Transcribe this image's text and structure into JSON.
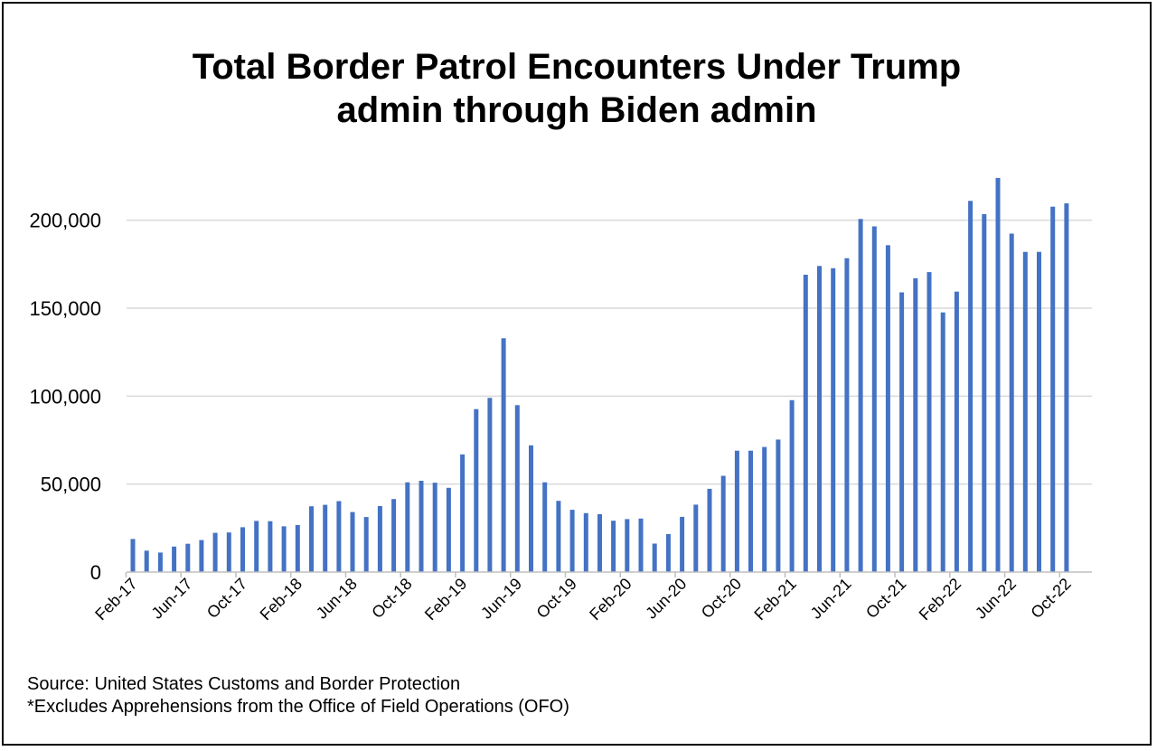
{
  "chart_data": {
    "type": "bar",
    "title_lines": [
      "Total Border Patrol Encounters Under Trump",
      "admin through Biden admin"
    ],
    "xlabel": "",
    "ylabel": "",
    "ylim": [
      0,
      225000
    ],
    "yticks": [
      0,
      50000,
      100000,
      150000,
      200000
    ],
    "ytick_labels": [
      "0",
      "50,000",
      "100,000",
      "150,000",
      "200,000"
    ],
    "grid": true,
    "legend": "none",
    "bar_color": "#4472c4",
    "categories": [
      "Feb-17",
      "Mar-17",
      "Apr-17",
      "May-17",
      "Jun-17",
      "Jul-17",
      "Aug-17",
      "Sep-17",
      "Oct-17",
      "Nov-17",
      "Dec-17",
      "Jan-18",
      "Feb-18",
      "Mar-18",
      "Apr-18",
      "May-18",
      "Jun-18",
      "Jul-18",
      "Aug-18",
      "Sep-18",
      "Oct-18",
      "Nov-18",
      "Dec-18",
      "Jan-19",
      "Feb-19",
      "Mar-19",
      "Apr-19",
      "May-19",
      "Jun-19",
      "Jul-19",
      "Aug-19",
      "Sep-19",
      "Oct-19",
      "Nov-19",
      "Dec-19",
      "Jan-20",
      "Feb-20",
      "Mar-20",
      "Apr-20",
      "May-20",
      "Jun-20",
      "Jul-20",
      "Aug-20",
      "Sep-20",
      "Oct-20",
      "Nov-20",
      "Dec-20",
      "Jan-21",
      "Feb-21",
      "Mar-21",
      "Apr-21",
      "May-21",
      "Jun-21",
      "Jul-21",
      "Aug-21",
      "Sep-21",
      "Oct-21",
      "Nov-21",
      "Dec-21",
      "Jan-22",
      "Feb-22",
      "Mar-22",
      "Apr-22",
      "May-22",
      "Jun-22",
      "Jul-22",
      "Aug-22",
      "Sep-22",
      "Oct-22"
    ],
    "tick_labels": [
      "Feb-17",
      "Jun-17",
      "Oct-17",
      "Feb-18",
      "Jun-18",
      "Oct-18",
      "Feb-19",
      "Jun-19",
      "Oct-19",
      "Feb-20",
      "Jun-20",
      "Oct-20",
      "Feb-21",
      "Jun-21",
      "Oct-21",
      "Feb-22",
      "Jun-22",
      "Oct-22"
    ],
    "values": [
      18800,
      12200,
      11100,
      14500,
      16100,
      18200,
      22300,
      22500,
      25500,
      29100,
      28900,
      26000,
      26700,
      37400,
      38200,
      40300,
      34100,
      31300,
      37500,
      41500,
      51000,
      51900,
      50800,
      47900,
      66900,
      92600,
      99000,
      132900,
      94900,
      71999,
      51000,
      40500,
      35400,
      33500,
      32900,
      29200,
      30100,
      30400,
      16200,
      21600,
      31400,
      38300,
      47300,
      54700,
      69000,
      69000,
      71100,
      75300,
      97700,
      169000,
      174000,
      172700,
      178400,
      200700,
      196500,
      185800,
      159000,
      167000,
      170500,
      147600,
      159400,
      211000,
      203500,
      224000,
      192400,
      182000,
      182000,
      207700,
      209600
    ]
  },
  "notes": {
    "source": "Source: United States Customs and Border Protection",
    "footnote": "*Excludes Apprehensions from the Office of Field Operations (OFO)"
  }
}
